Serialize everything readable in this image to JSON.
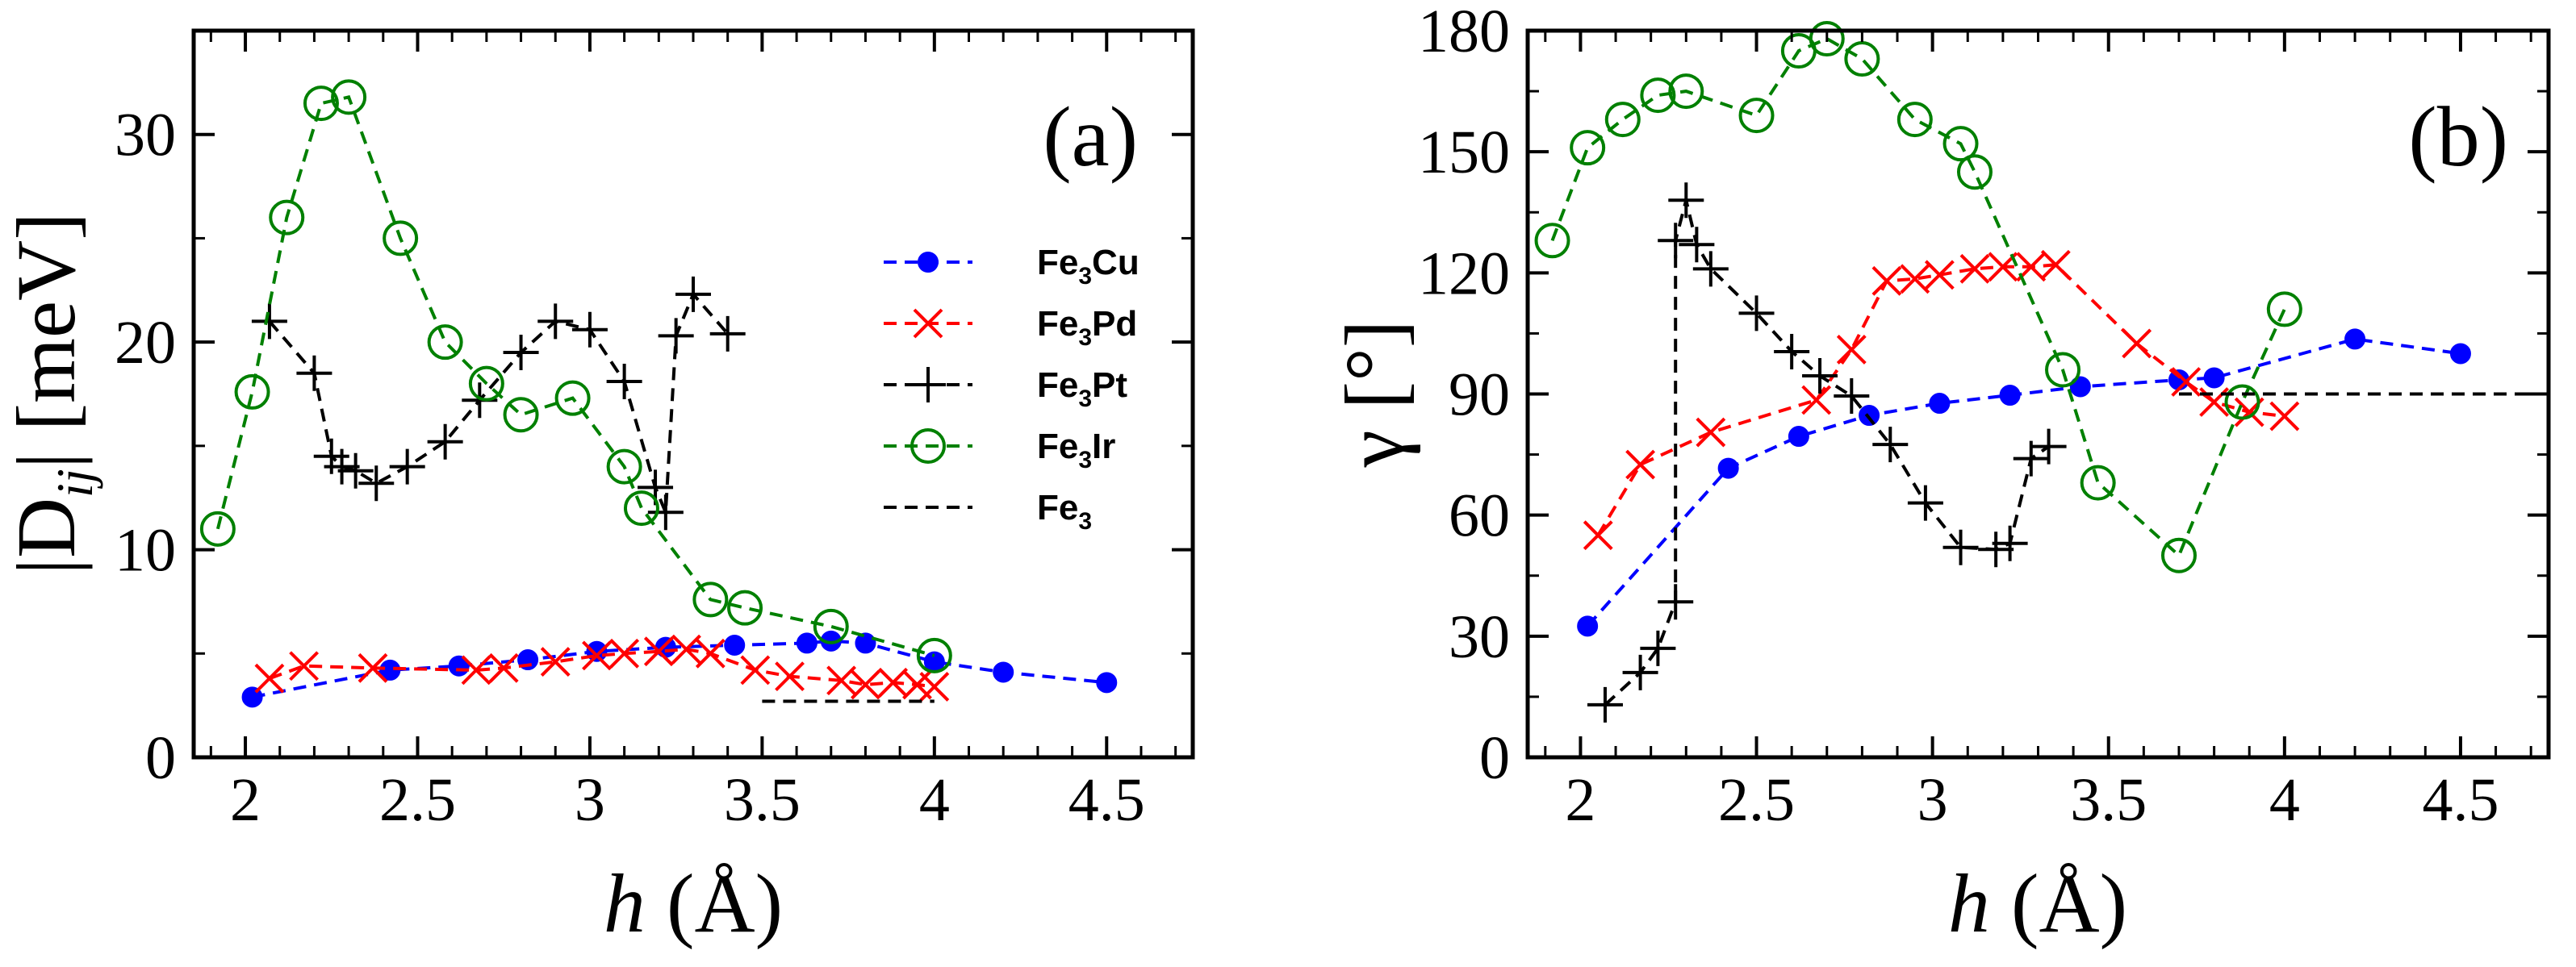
{
  "chart_data": [
    {
      "type": "line",
      "panel_label": "(a)",
      "xlabel_italic": "h",
      "xlabel_rest": " (Å)",
      "ylabel_main": "|D",
      "ylabel_sub": "ij",
      "ylabel_rest": "| [meV]",
      "xlim": [
        1.85,
        4.75
      ],
      "ylim": [
        0,
        35
      ],
      "xticks": [
        2,
        2.5,
        3,
        3.5,
        4,
        4.5
      ],
      "xtick_labels": [
        "2",
        "2.5",
        "3",
        "3.5",
        "4",
        "4.5"
      ],
      "yticks": [
        0,
        10,
        20,
        30
      ],
      "ytick_labels": [
        "0",
        "10",
        "20",
        "30"
      ],
      "legend_location": "center-right",
      "series": [
        {
          "name": "Fe3Cu",
          "legend_base": "Fe",
          "legend_sub": "3",
          "legend_rest": "Cu",
          "color": "#0000ff",
          "marker": "filled-circle",
          "x": [
            2.02,
            2.42,
            2.62,
            2.82,
            3.02,
            3.22,
            3.42,
            3.63,
            3.7,
            3.8,
            4.0,
            4.2,
            4.5
          ],
          "y": [
            2.9,
            4.2,
            4.4,
            4.7,
            5.1,
            5.3,
            5.4,
            5.5,
            5.6,
            5.5,
            4.6,
            4.1,
            3.6
          ]
        },
        {
          "name": "Fe3Pd",
          "legend_base": "Fe",
          "legend_sub": "3",
          "legend_rest": "Pd",
          "color": "#ff0000",
          "marker": "x",
          "x": [
            2.07,
            2.17,
            2.37,
            2.67,
            2.75,
            2.9,
            3.02,
            3.1,
            3.2,
            3.28,
            3.35,
            3.48,
            3.58,
            3.73,
            3.8,
            3.88,
            3.95,
            4.0
          ],
          "y": [
            3.8,
            4.4,
            4.3,
            4.2,
            4.3,
            4.6,
            4.9,
            5.0,
            5.1,
            5.2,
            5.0,
            4.2,
            3.9,
            3.7,
            3.5,
            3.6,
            3.5,
            3.4
          ]
        },
        {
          "name": "Fe3Pt",
          "legend_base": "Fe",
          "legend_sub": "3",
          "legend_rest": "Pt",
          "color": "#000000",
          "marker": "plus",
          "x": [
            2.07,
            2.2,
            2.25,
            2.28,
            2.32,
            2.38,
            2.47,
            2.58,
            2.68,
            2.8,
            2.9,
            3.0,
            3.1,
            3.19,
            3.22,
            3.25,
            3.3,
            3.4
          ],
          "y": [
            21.0,
            18.5,
            14.5,
            14.0,
            13.8,
            13.2,
            14.0,
            15.2,
            17.2,
            19.5,
            21.0,
            20.6,
            18.1,
            13.0,
            11.8,
            20.3,
            22.3,
            20.4
          ]
        },
        {
          "name": "Fe3Ir",
          "legend_base": "Fe",
          "legend_sub": "3",
          "legend_rest": "Ir",
          "color": "#008000",
          "marker": "open-circle",
          "x": [
            1.92,
            2.02,
            2.12,
            2.22,
            2.3,
            2.45,
            2.58,
            2.7,
            2.8,
            2.95,
            3.1,
            3.15,
            3.35,
            3.45,
            3.7,
            4.0
          ],
          "y": [
            11.0,
            17.6,
            26.0,
            31.5,
            31.8,
            25.0,
            20.0,
            18.0,
            16.5,
            17.3,
            14.0,
            12.0,
            7.6,
            7.2,
            6.3,
            4.9
          ]
        },
        {
          "name": "Fe3",
          "legend_base": "Fe",
          "legend_sub": "3",
          "legend_rest": "",
          "color": "#000000",
          "marker": "none",
          "x": [
            3.5,
            4.0
          ],
          "y": [
            2.7,
            2.7
          ]
        }
      ]
    },
    {
      "type": "line",
      "panel_label": "(b)",
      "xlabel_italic": "h",
      "xlabel_rest": " (Å)",
      "ylabel_main": "γ  [°]",
      "xlim": [
        1.85,
        4.75
      ],
      "ylim": [
        0,
        180
      ],
      "xticks": [
        2,
        2.5,
        3,
        3.5,
        4,
        4.5
      ],
      "xtick_labels": [
        "2",
        "2.5",
        "3",
        "3.5",
        "4",
        "4.5"
      ],
      "yticks": [
        0,
        30,
        60,
        90,
        120,
        150,
        180
      ],
      "ytick_labels": [
        "0",
        "30",
        "60",
        "90",
        "120",
        "150",
        "180"
      ],
      "series": [
        {
          "name": "Fe3Cu",
          "color": "#0000ff",
          "marker": "filled-circle",
          "x": [
            2.02,
            2.42,
            2.62,
            2.82,
            3.02,
            3.22,
            3.42,
            3.7,
            3.8,
            4.2,
            4.5
          ],
          "y": [
            32.5,
            71.6,
            79.5,
            84.7,
            87.7,
            89.7,
            91.8,
            93.5,
            94.0,
            103.6,
            100.0
          ]
        },
        {
          "name": "Fe3Pd",
          "color": "#ff0000",
          "marker": "x",
          "x": [
            2.05,
            2.17,
            2.37,
            2.67,
            2.77,
            2.87,
            2.95,
            3.02,
            3.12,
            3.2,
            3.28,
            3.35,
            3.58,
            3.72,
            3.8,
            3.9,
            4.0
          ],
          "y": [
            55.0,
            72.5,
            80.5,
            88.5,
            101.0,
            118.0,
            118.5,
            119.5,
            121.0,
            121.5,
            121.5,
            122.0,
            102.5,
            93.0,
            88.0,
            85.5,
            84.5
          ]
        },
        {
          "name": "Fe3Pt",
          "color": "#000000",
          "marker": "plus",
          "x": [
            2.07,
            2.17,
            2.22,
            2.27,
            2.27,
            2.3,
            2.33,
            2.37,
            2.5,
            2.6,
            2.68,
            2.77,
            2.88,
            2.98,
            3.08,
            3.18,
            3.22,
            3.28,
            3.33
          ],
          "y": [
            13.0,
            21.0,
            27.0,
            38.5,
            128.0,
            138.0,
            127.0,
            121.0,
            110.0,
            100.5,
            94.5,
            89.5,
            77.5,
            63.0,
            52.0,
            51.5,
            53.0,
            74.0,
            77.0
          ]
        },
        {
          "name": "Fe3Ir",
          "color": "#008000",
          "marker": "open-circle",
          "x": [
            1.92,
            2.02,
            2.12,
            2.22,
            2.3,
            2.5,
            2.62,
            2.7,
            2.8,
            2.95,
            3.08,
            3.12,
            3.37,
            3.47,
            3.7,
            3.88,
            4.0
          ],
          "y": [
            128.0,
            151.0,
            158.0,
            164.0,
            165.0,
            159.0,
            175.0,
            178.0,
            173.0,
            158.0,
            152.0,
            145.0,
            96.0,
            68.0,
            50.0,
            88.0,
            111.0
          ]
        },
        {
          "name": "Fe3",
          "color": "#000000",
          "marker": "none",
          "x": [
            3.7,
            4.75
          ],
          "y": [
            90.0,
            90.0
          ]
        }
      ]
    }
  ]
}
